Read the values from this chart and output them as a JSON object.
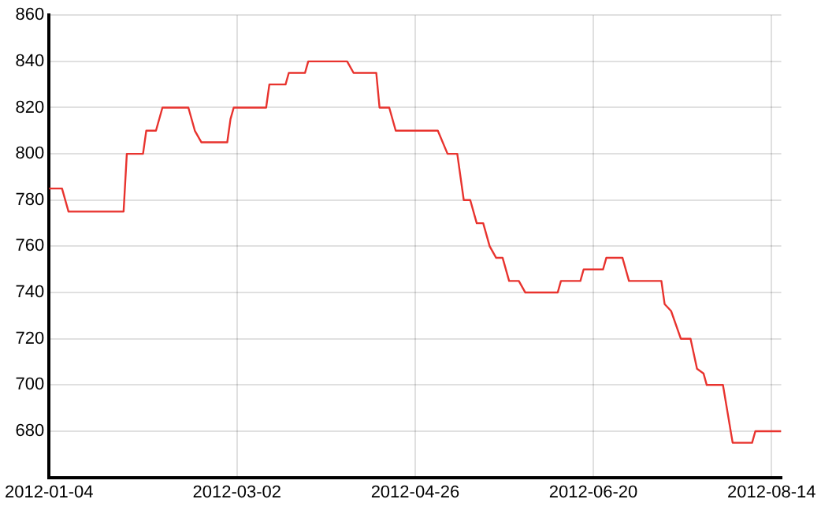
{
  "chart_data": {
    "type": "line",
    "x": [
      "2012-01-04",
      "2012-01-08",
      "2012-01-10",
      "2012-01-27",
      "2012-01-28",
      "2012-02-02",
      "2012-02-03",
      "2012-02-06",
      "2012-02-08",
      "2012-02-16",
      "2012-02-18",
      "2012-02-20",
      "2012-02-28",
      "2012-02-29",
      "2012-03-01",
      "2012-03-11",
      "2012-03-12",
      "2012-03-17",
      "2012-03-18",
      "2012-03-23",
      "2012-03-24",
      "2012-04-05",
      "2012-04-07",
      "2012-04-14",
      "2012-04-15",
      "2012-04-18",
      "2012-04-20",
      "2012-05-03",
      "2012-05-06",
      "2012-05-09",
      "2012-05-11",
      "2012-05-13",
      "2012-05-15",
      "2012-05-17",
      "2012-05-19",
      "2012-05-21",
      "2012-05-23",
      "2012-05-25",
      "2012-05-28",
      "2012-05-30",
      "2012-06-09",
      "2012-06-10",
      "2012-06-16",
      "2012-06-17",
      "2012-06-23",
      "2012-06-24",
      "2012-06-29",
      "2012-07-01",
      "2012-07-11",
      "2012-07-12",
      "2012-07-14",
      "2012-07-17",
      "2012-07-20",
      "2012-07-22",
      "2012-07-24",
      "2012-07-25",
      "2012-07-30",
      "2012-08-02",
      "2012-08-08",
      "2012-08-09",
      "2012-08-17"
    ],
    "series": [
      {
        "color": "#e8332e",
        "values": [
          785,
          785,
          775,
          775,
          800,
          800,
          810,
          810,
          820,
          820,
          810,
          805,
          805,
          815,
          820,
          820,
          830,
          830,
          835,
          835,
          840,
          840,
          835,
          835,
          820,
          820,
          810,
          810,
          800,
          800,
          780,
          780,
          770,
          770,
          760,
          755,
          755,
          745,
          745,
          740,
          740,
          745,
          745,
          750,
          750,
          755,
          755,
          745,
          745,
          735,
          732,
          720,
          720,
          707,
          705,
          700,
          700,
          675,
          675,
          680,
          680
        ]
      }
    ],
    "xlim": [
      "2012-01-04",
      "2012-08-17"
    ],
    "xticks": [
      "2012-01-04",
      "2012-03-02",
      "2012-04-26",
      "2012-06-20",
      "2012-08-14"
    ],
    "ylim": [
      660,
      860
    ],
    "yticks": [
      680,
      700,
      720,
      740,
      760,
      780,
      800,
      820,
      840,
      860
    ],
    "grid": true,
    "legend": false,
    "marker": "none",
    "line_style": "solid"
  }
}
